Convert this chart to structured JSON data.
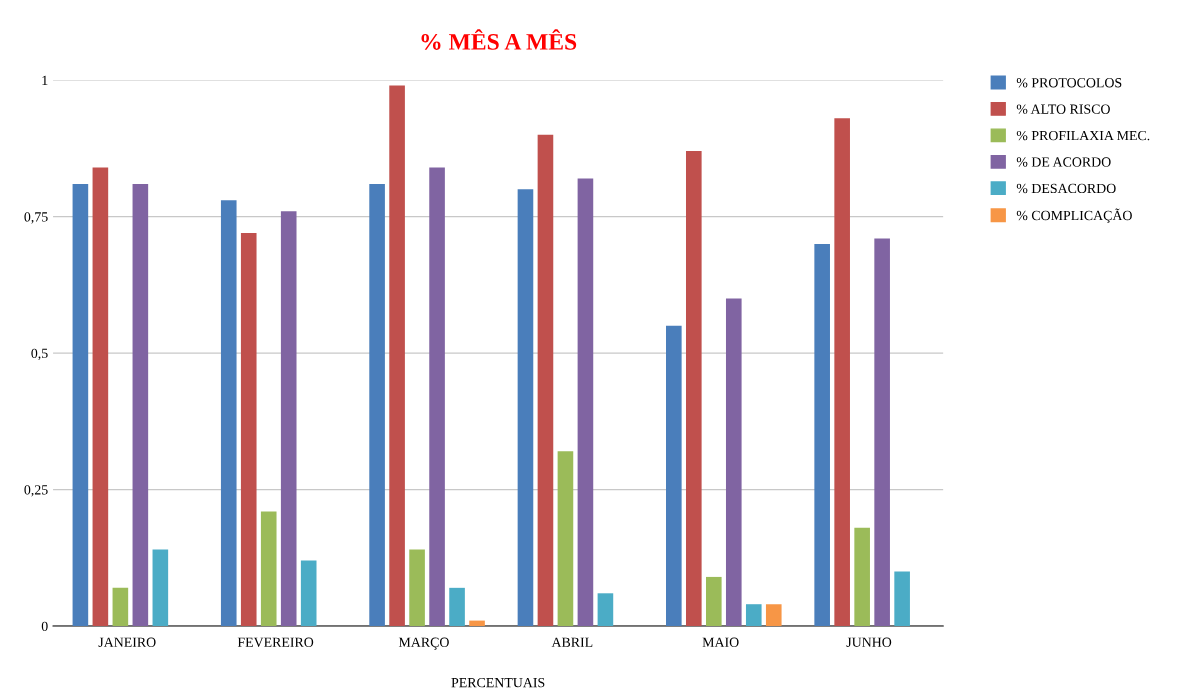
{
  "chart_data": {
    "type": "bar",
    "title": "% MÊS A MÊS",
    "xlabel": "PERCENTUAIS",
    "categories": [
      "JANEIRO",
      "FEVEREIRO",
      "MARÇO",
      "ABRIL",
      "MAIO",
      "JUNHO"
    ],
    "series": [
      {
        "name": "% PROTOCOLOS",
        "color": "#4a7ebb",
        "values": [
          0.81,
          0.78,
          0.81,
          0.8,
          0.55,
          0.7
        ]
      },
      {
        "name": "% ALTO RISCO",
        "color": "#c0504d",
        "values": [
          0.84,
          0.72,
          0.99,
          0.9,
          0.87,
          0.93
        ]
      },
      {
        "name": "% PROFILAXIA MEC.",
        "color": "#9bbb59",
        "values": [
          0.07,
          0.21,
          0.14,
          0.32,
          0.09,
          0.18
        ]
      },
      {
        "name": "% DE ACORDO",
        "color": "#8064a2",
        "values": [
          0.81,
          0.76,
          0.84,
          0.82,
          0.6,
          0.71
        ]
      },
      {
        "name": "% DESACORDO",
        "color": "#4bacc6",
        "values": [
          0.14,
          0.12,
          0.07,
          0.06,
          0.04,
          0.1
        ]
      },
      {
        "name": "% COMPLICAÇÃO",
        "color": "#f79646",
        "values": [
          null,
          null,
          0.01,
          null,
          0.04,
          null
        ]
      }
    ],
    "ylim": [
      0,
      1
    ],
    "yticks": [
      0,
      {
        "value": 0.25,
        "label": "0,25"
      },
      {
        "value": 0.5,
        "label": "0,5"
      },
      {
        "value": 0.75,
        "label": "0,75"
      },
      1
    ],
    "grid": "y",
    "legend": "right"
  }
}
